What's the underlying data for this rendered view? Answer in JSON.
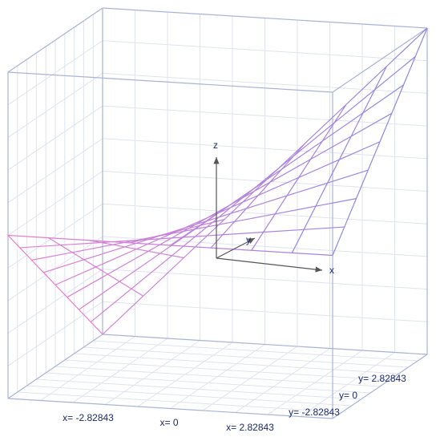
{
  "chart_data": {
    "type": "surface",
    "x": [
      -2.82843,
      -2.12132,
      -1.41421,
      -0.70711,
      0,
      0.70711,
      1.41421,
      2.12132,
      2.82843
    ],
    "y": [
      -2.82843,
      -2.12132,
      -1.41421,
      -0.70711,
      0,
      0.70711,
      1.41421,
      2.12132,
      2.82843
    ],
    "z": [
      [
        0,
        0,
        0,
        0,
        0,
        0,
        0,
        0,
        0
      ],
      [
        -1,
        -0.75,
        -0.5,
        -0.25,
        0,
        0.25,
        0.5,
        0.75,
        1
      ],
      [
        -2,
        -1.5,
        -1,
        -0.5,
        0,
        0.5,
        1,
        1.5,
        2
      ],
      [
        -3,
        -2.25,
        -1.5,
        -0.75,
        0,
        0.75,
        1.5,
        2.25,
        3
      ],
      [
        -4,
        -3,
        -2,
        -1,
        0,
        1,
        2,
        3,
        4
      ],
      [
        -5,
        -3.75,
        -2.5,
        -1.25,
        0,
        1.25,
        2.5,
        3.75,
        5
      ],
      [
        -6,
        -4.5,
        -3,
        -1.5,
        0,
        1.5,
        3,
        4.5,
        6
      ],
      [
        -7,
        -5.25,
        -3.5,
        -1.75,
        0,
        1.75,
        3.5,
        5.25,
        7
      ],
      [
        -8,
        -6,
        -4,
        -2,
        0,
        2,
        4,
        6,
        8
      ]
    ],
    "xlim": [
      -2.82843,
      2.82843
    ],
    "ylim": [
      -2.82843,
      2.82843
    ],
    "zlim": [
      -8,
      8
    ],
    "xticks": [
      {
        "value": -2.82843,
        "label": "x= -2.82843"
      },
      {
        "value": 0,
        "label": "x= 0"
      },
      {
        "value": 2.82843,
        "label": "x= 2.82843"
      }
    ],
    "yticks": [
      {
        "value": -2.82843,
        "label": "y= -2.82843"
      },
      {
        "value": 0,
        "label": "y= 0"
      },
      {
        "value": 2.82843,
        "label": "y= 2.82843"
      }
    ],
    "axis_labels": {
      "x": "x",
      "y": "y",
      "z": "z"
    },
    "colors": [
      "#e77fcf",
      "#8c86e4"
    ]
  }
}
